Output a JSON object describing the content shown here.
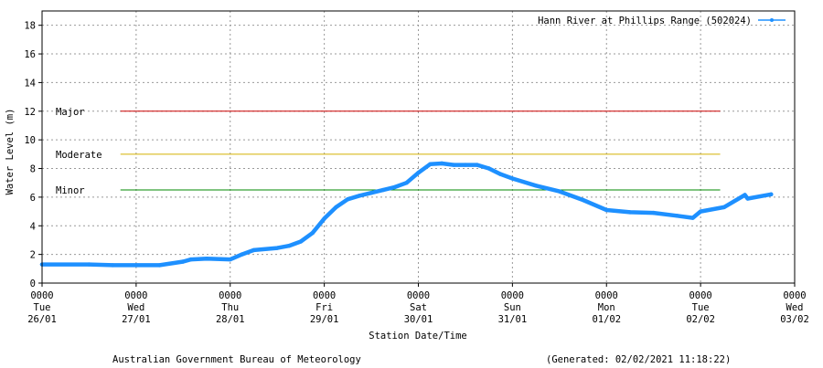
{
  "chart_data": {
    "type": "line",
    "ylabel": "Water Level (m)",
    "xlabel": "Station Date/Time",
    "ylim": [
      0,
      19
    ],
    "yticks": [
      0,
      2,
      4,
      6,
      8,
      10,
      12,
      14,
      16,
      18
    ],
    "xlim": [
      "2021-01-26 00:00",
      "2021-02-03 00:00"
    ],
    "xticks": [
      {
        "time": "0000",
        "day": "Tue",
        "date": "26/01"
      },
      {
        "time": "0000",
        "day": "Wed",
        "date": "27/01"
      },
      {
        "time": "0000",
        "day": "Thu",
        "date": "28/01"
      },
      {
        "time": "0000",
        "day": "Fri",
        "date": "29/01"
      },
      {
        "time": "0000",
        "day": "Sat",
        "date": "30/01"
      },
      {
        "time": "0000",
        "day": "Sun",
        "date": "31/01"
      },
      {
        "time": "0000",
        "day": "Mon",
        "date": "01/02"
      },
      {
        "time": "0000",
        "day": "Tue",
        "date": "02/02"
      },
      {
        "time": "0000",
        "day": "Wed",
        "date": "03/02"
      }
    ],
    "grid": true,
    "legend_position": "top-right",
    "series": [
      {
        "name": "Hann River at Phillips Range (502024)",
        "color": "#1e90ff",
        "points": [
          [
            "2021-01-26 00:00",
            1.3
          ],
          [
            "2021-01-26 12:00",
            1.3
          ],
          [
            "2021-01-26 18:00",
            1.25
          ],
          [
            "2021-01-27 00:00",
            1.25
          ],
          [
            "2021-01-27 06:00",
            1.25
          ],
          [
            "2021-01-27 12:00",
            1.5
          ],
          [
            "2021-01-27 14:00",
            1.65
          ],
          [
            "2021-01-27 18:00",
            1.7
          ],
          [
            "2021-01-28 00:00",
            1.65
          ],
          [
            "2021-01-28 03:00",
            2.0
          ],
          [
            "2021-01-28 06:00",
            2.3
          ],
          [
            "2021-01-28 12:00",
            2.45
          ],
          [
            "2021-01-28 15:00",
            2.6
          ],
          [
            "2021-01-28 18:00",
            2.9
          ],
          [
            "2021-01-28 21:00",
            3.5
          ],
          [
            "2021-01-29 00:00",
            4.5
          ],
          [
            "2021-01-29 03:00",
            5.3
          ],
          [
            "2021-01-29 06:00",
            5.85
          ],
          [
            "2021-01-29 09:00",
            6.1
          ],
          [
            "2021-01-29 12:00",
            6.3
          ],
          [
            "2021-01-29 15:00",
            6.5
          ],
          [
            "2021-01-29 18:00",
            6.7
          ],
          [
            "2021-01-29 21:00",
            7.0
          ],
          [
            "2021-01-30 00:00",
            7.7
          ],
          [
            "2021-01-30 03:00",
            8.3
          ],
          [
            "2021-01-30 06:00",
            8.35
          ],
          [
            "2021-01-30 09:00",
            8.25
          ],
          [
            "2021-01-30 12:00",
            8.25
          ],
          [
            "2021-01-30 15:00",
            8.25
          ],
          [
            "2021-01-30 18:00",
            8.0
          ],
          [
            "2021-01-30 21:00",
            7.6
          ],
          [
            "2021-01-31 00:00",
            7.3
          ],
          [
            "2021-01-31 06:00",
            6.8
          ],
          [
            "2021-01-31 12:00",
            6.4
          ],
          [
            "2021-01-31 18:00",
            5.8
          ],
          [
            "2021-02-01 00:00",
            5.1
          ],
          [
            "2021-02-01 06:00",
            4.95
          ],
          [
            "2021-02-01 12:00",
            4.9
          ],
          [
            "2021-02-01 18:00",
            4.7
          ],
          [
            "2021-02-01 22:00",
            4.55
          ],
          [
            "2021-02-02 00:00",
            5.0
          ],
          [
            "2021-02-02 06:00",
            5.3
          ],
          [
            "2021-02-02 12:00",
            5.9
          ],
          [
            "2021-02-02 18:00",
            6.2
          ],
          [
            "2021-02-02 11:18",
            6.15
          ]
        ]
      }
    ],
    "thresholds": [
      {
        "label": "Major",
        "value": 12.0,
        "color": "#cc0000"
      },
      {
        "label": "Moderate",
        "value": 9.0,
        "color": "#d4b000"
      },
      {
        "label": "Minor",
        "value": 6.5,
        "color": "#008800"
      }
    ]
  },
  "footer": {
    "left": "Australian Government Bureau of Meteorology",
    "right": "(Generated: 02/02/2021 11:18:22)"
  }
}
